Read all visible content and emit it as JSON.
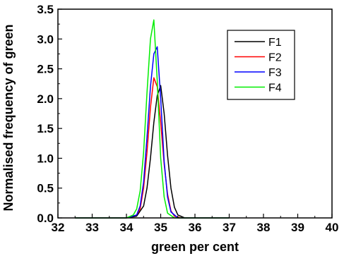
{
  "chart_data": {
    "type": "line",
    "title": "",
    "xlabel": "green per cent",
    "ylabel": "Normalised frequency of green",
    "xlim": [
      32,
      40
    ],
    "ylim": [
      0,
      3.5
    ],
    "xticks": [
      32,
      33,
      34,
      35,
      36,
      37,
      38,
      39,
      40
    ],
    "yticks": [
      0.0,
      0.5,
      1.0,
      1.5,
      2.0,
      2.5,
      3.0,
      3.5
    ],
    "xtick_labels": [
      "32",
      "33",
      "34",
      "35",
      "36",
      "37",
      "38",
      "39",
      "40"
    ],
    "ytick_labels": [
      "0.0",
      "0.5",
      "1.0",
      "1.5",
      "2.0",
      "2.5",
      "3.0",
      "3.5"
    ],
    "grid": false,
    "legend_position": "top-right",
    "series": [
      {
        "name": "F1",
        "color": "#000000",
        "x": [
          32.5,
          34.0,
          34.3,
          34.5,
          34.6,
          34.7,
          34.8,
          34.9,
          35.0,
          35.1,
          35.2,
          35.3,
          35.4,
          35.5,
          35.7,
          37.0
        ],
        "y": [
          0.0,
          0.0,
          0.03,
          0.2,
          0.5,
          1.0,
          1.6,
          2.05,
          2.22,
          1.75,
          1.05,
          0.5,
          0.18,
          0.05,
          0.0,
          0.0
        ]
      },
      {
        "name": "F2",
        "color": "#ff0000",
        "x": [
          32.5,
          34.0,
          34.3,
          34.4,
          34.5,
          34.6,
          34.7,
          34.8,
          34.9,
          35.0,
          35.1,
          35.2,
          35.3,
          35.4,
          35.6,
          37.0
        ],
        "y": [
          0.0,
          0.0,
          0.05,
          0.15,
          0.5,
          1.1,
          1.85,
          2.35,
          2.2,
          1.6,
          0.9,
          0.4,
          0.12,
          0.03,
          0.0,
          0.0
        ]
      },
      {
        "name": "F3",
        "color": "#0000ff",
        "x": [
          32.5,
          34.0,
          34.3,
          34.4,
          34.5,
          34.6,
          34.7,
          34.8,
          34.9,
          35.0,
          35.1,
          35.2,
          35.3,
          35.5,
          37.0
        ],
        "y": [
          0.0,
          0.0,
          0.05,
          0.2,
          0.6,
          1.35,
          2.2,
          2.75,
          2.87,
          2.0,
          0.95,
          0.35,
          0.1,
          0.0,
          0.0
        ]
      },
      {
        "name": "F4",
        "color": "#00ee00",
        "x": [
          32.5,
          34.0,
          34.2,
          34.3,
          34.4,
          34.5,
          34.6,
          34.7,
          34.8,
          34.9,
          35.0,
          35.1,
          35.2,
          35.4,
          37.0
        ],
        "y": [
          0.0,
          0.0,
          0.05,
          0.15,
          0.45,
          1.1,
          2.1,
          3.0,
          3.32,
          2.3,
          1.0,
          0.35,
          0.08,
          0.0,
          0.0
        ]
      }
    ]
  }
}
